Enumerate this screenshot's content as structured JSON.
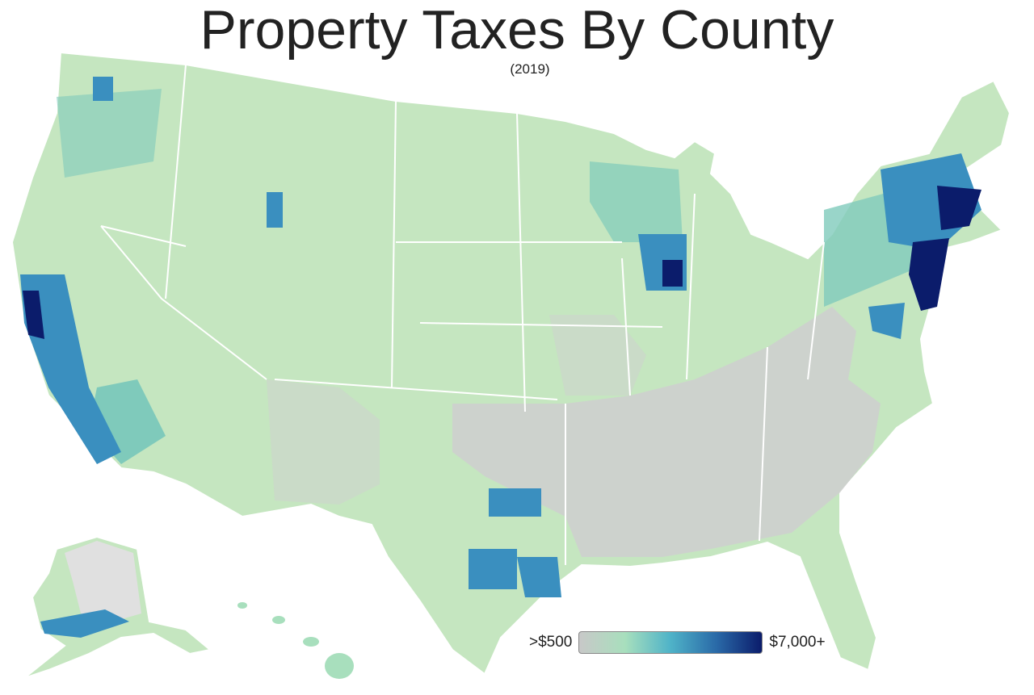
{
  "title": "Property Taxes By County",
  "subtitle": "(2019)",
  "legend": {
    "min_label": ">$500",
    "max_label": "$7,000+",
    "colors": [
      "#c8c8c8",
      "#a8dfbd",
      "#4fb3c8",
      "#2a6aa8",
      "#0b1c6b"
    ]
  },
  "map_colors": {
    "base": "#c5e6c0",
    "low": "#cfcfcf",
    "mid": "#7fcabb",
    "high": "#3a8fbf",
    "top": "#0b1c6b",
    "border": "#ffffff",
    "missing": "#e0e0e0"
  }
}
